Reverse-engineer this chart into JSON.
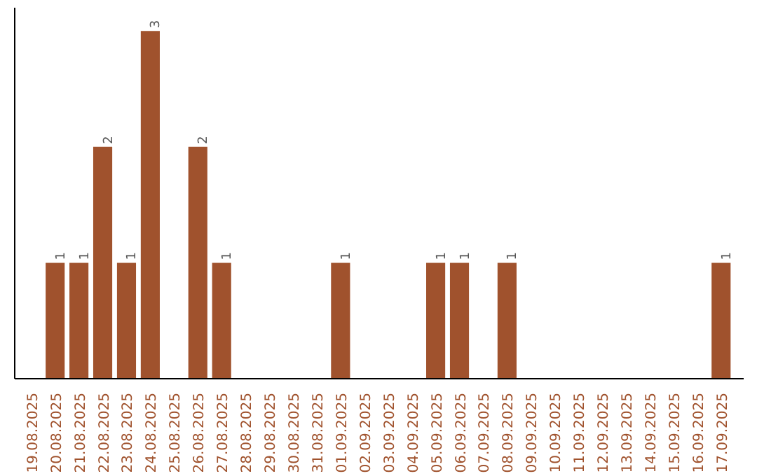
{
  "chart_data": {
    "type": "bar",
    "categories": [
      "19.08.2025",
      "20.08.2025",
      "21.08.2025",
      "22.08.2025",
      "23.08.2025",
      "24.08.2025",
      "25.08.2025",
      "26.08.2025",
      "27.08.2025",
      "28.08.2025",
      "29.08.2025",
      "30.08.2025",
      "31.08.2025",
      "01.09.2025",
      "02.09.2025",
      "03.09.2025",
      "04.09.2025",
      "05.09.2025",
      "06.09.2025",
      "07.09.2025",
      "08.09.2025",
      "09.09.2025",
      "10.09.2025",
      "11.09.2025",
      "12.09.2025",
      "13.09.2025",
      "14.09.2025",
      "15.09.2025",
      "16.09.2025",
      "17.09.2025"
    ],
    "values": [
      0,
      1,
      1,
      2,
      1,
      3,
      0,
      2,
      1,
      0,
      0,
      0,
      0,
      1,
      0,
      0,
      0,
      1,
      1,
      0,
      1,
      0,
      0,
      0,
      0,
      0,
      0,
      0,
      0,
      1
    ],
    "value_labels": [
      null,
      "1",
      "1",
      "2",
      "1",
      "3",
      null,
      "2",
      "1",
      null,
      null,
      null,
      null,
      "1",
      null,
      null,
      null,
      "1",
      "1",
      null,
      "1",
      null,
      null,
      null,
      null,
      null,
      null,
      null,
      null,
      "1"
    ],
    "color": "#a0522d",
    "ylim": [
      0,
      3.2
    ],
    "tick_labels": "x",
    "grid": false
  }
}
